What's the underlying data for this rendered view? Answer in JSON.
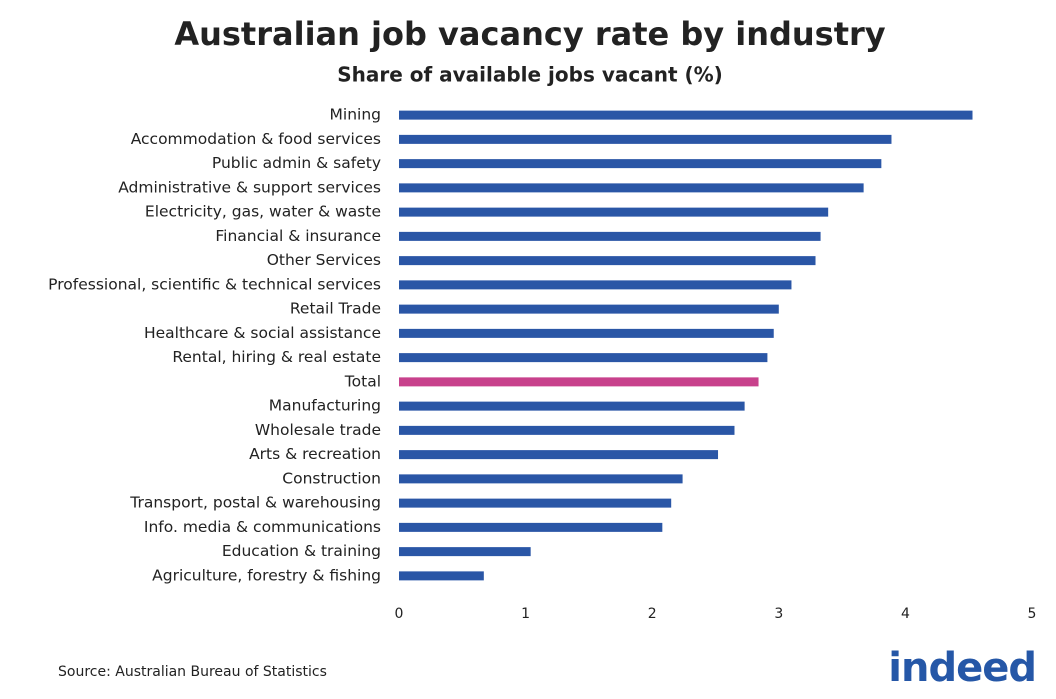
{
  "chart_data": {
    "type": "barh",
    "title": "Australian job vacancy rate by industry",
    "subtitle": "Share of available jobs vacant (%)",
    "categories": [
      "Mining",
      "Accommodation & food services",
      "Public admin & safety",
      "Administrative & support services",
      "Electricity, gas, water & waste",
      "Financial & insurance",
      "Other Services",
      "Professional, scientific & technical services",
      "Retail Trade",
      "Healthcare & social assistance",
      "Rental, hiring & real estate",
      "Total",
      "Manufacturing",
      "Wholesale trade",
      "Arts & recreation",
      "Construction",
      "Transport, postal & warehousing",
      "Info. media & communications",
      "Education & training",
      "Agriculture, forestry & fishing"
    ],
    "values": [
      4.53,
      3.89,
      3.81,
      3.67,
      3.39,
      3.33,
      3.29,
      3.1,
      3.0,
      2.96,
      2.91,
      2.84,
      2.73,
      2.65,
      2.52,
      2.24,
      2.15,
      2.08,
      1.04,
      0.67
    ],
    "colors": [
      "#2a56a6",
      "#2a56a6",
      "#2a56a6",
      "#2a56a6",
      "#2a56a6",
      "#2a56a6",
      "#2a56a6",
      "#2a56a6",
      "#2a56a6",
      "#2a56a6",
      "#2a56a6",
      "#c8418c",
      "#2a56a6",
      "#2a56a6",
      "#2a56a6",
      "#2a56a6",
      "#2a56a6",
      "#2a56a6",
      "#2a56a6",
      "#2a56a6"
    ],
    "xlim": [
      0,
      5
    ],
    "xticks": [
      0,
      1,
      2,
      3,
      4,
      5
    ],
    "grid": false,
    "source": "Source: Australian Bureau of Statistics",
    "logo": "indeed"
  }
}
